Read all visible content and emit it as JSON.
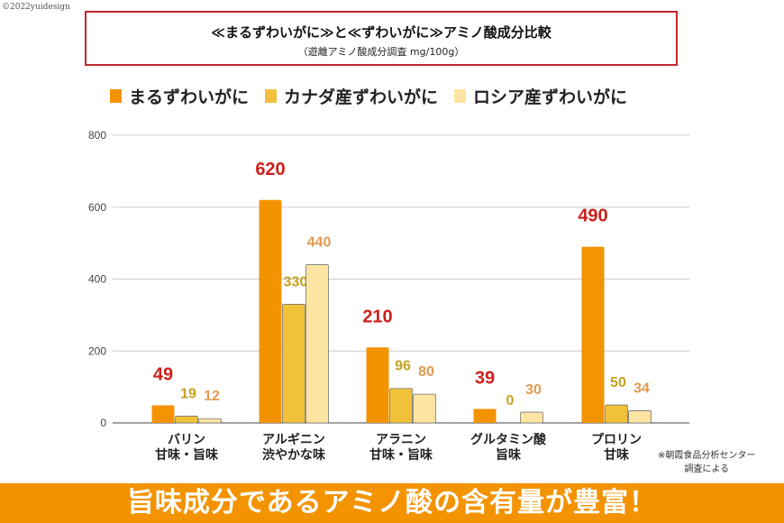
{
  "copyright": "©2022yuidesign",
  "title": "≪まるずわいがに≫と≪ずわいがに≫アミノ酸成分比較",
  "subtitle": "（遊離アミノ酸成分調査 mg/100g）",
  "note_lines": [
    "※朝霞食品分析センター",
    "調査による"
  ],
  "banner": "旨味成分であるアミノ酸の含有量が豊富！",
  "chart_data": {
    "type": "bar",
    "categories": [
      [
        "バリン",
        "甘味・旨味"
      ],
      [
        "アルギニン",
        "渋やかな味"
      ],
      [
        "アラニン",
        "甘味・旨味"
      ],
      [
        "グルタミン酸",
        "旨味"
      ],
      [
        "プロリン",
        "甘味"
      ]
    ],
    "series": [
      {
        "name": "まるずわいがに",
        "values": [
          49,
          620,
          210,
          39,
          490
        ],
        "color": "#f39300",
        "label_color": "#cc1f1a"
      },
      {
        "name": "カナダ産ずわいがに",
        "values": [
          19,
          330,
          96,
          0,
          50
        ],
        "color": "#f0c23a",
        "label_color": "#c4a21e"
      },
      {
        "name": "ロシア産ずわいがに",
        "values": [
          12,
          440,
          80,
          30,
          34
        ],
        "color": "#fde4a3",
        "label_color": "#e39a52"
      }
    ],
    "yticks": [
      0,
      200,
      400,
      600,
      800
    ],
    "ylim": [
      0,
      800
    ],
    "grid": true,
    "legend": "top"
  }
}
